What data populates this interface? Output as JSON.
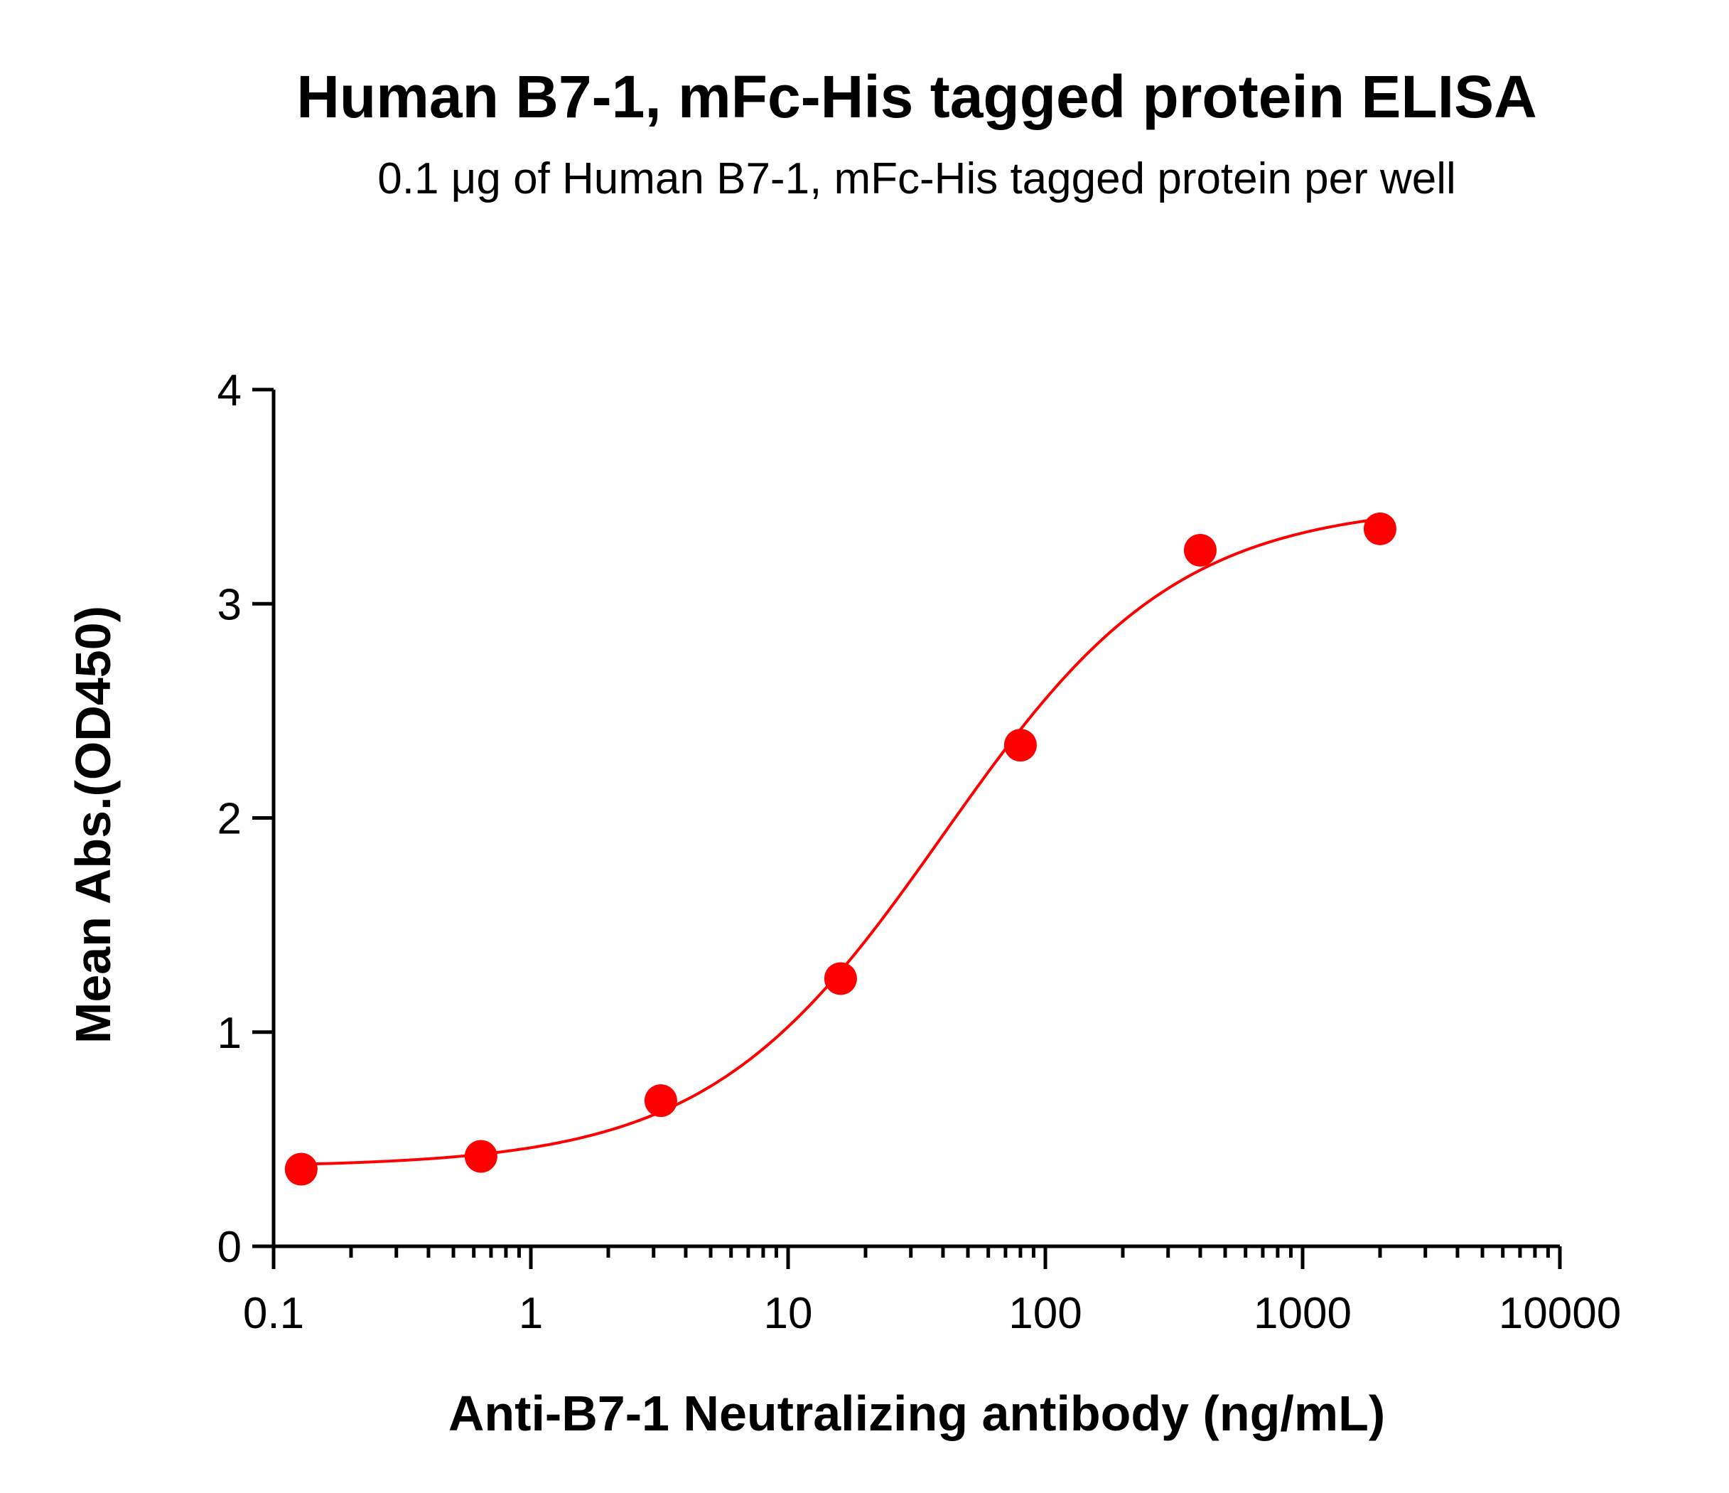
{
  "chart_data": {
    "type": "scatter",
    "title": "Human B7-1, mFc-His tagged protein ELISA",
    "subtitle": "0.1 μg of Human B7-1, mFc-His tagged protein per well",
    "xlabel": "Anti-B7-1 Neutralizing antibody (ng/mL)",
    "ylabel": "Mean Abs.(OD450)",
    "x_scale": "log",
    "xlim": [
      0.1,
      10000
    ],
    "ylim": [
      0,
      4
    ],
    "x_ticks": [
      0.1,
      1,
      10,
      100,
      1000,
      10000
    ],
    "x_tick_labels": [
      "0.1",
      "1",
      "10",
      "100",
      "1000",
      "10000"
    ],
    "y_ticks": [
      0,
      1,
      2,
      3,
      4
    ],
    "y_tick_labels": [
      "0",
      "1",
      "2",
      "3",
      "4"
    ],
    "grid": false,
    "series": [
      {
        "color": "#ff0000",
        "x": [
          0.128,
          0.64,
          3.2,
          16,
          80,
          400,
          2000
        ],
        "y": [
          0.36,
          0.42,
          0.68,
          1.25,
          2.34,
          3.25,
          3.35
        ],
        "fit": "four-parameter logistic curve"
      }
    ]
  }
}
